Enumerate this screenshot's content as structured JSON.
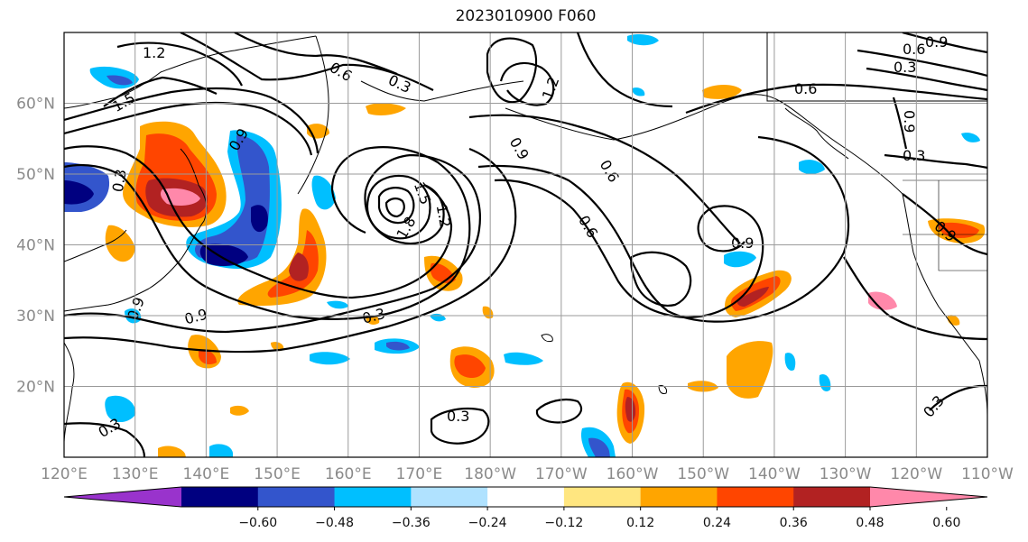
{
  "title": "2023010900 F060",
  "axes": {
    "lon_labels": [
      "120°E",
      "130°E",
      "140°E",
      "150°E",
      "160°E",
      "170°E",
      "180°W",
      "170°W",
      "160°W",
      "150°W",
      "140°W",
      "130°W",
      "120°W",
      "110°W"
    ],
    "lat_labels": [
      "60°N",
      "50°N",
      "40°N",
      "30°N",
      "20°N"
    ],
    "lon_range_deg_east": [
      120,
      250
    ],
    "lat_range_deg_north": [
      10,
      70
    ],
    "grid": true
  },
  "colorbar": {
    "tick_labels": [
      "−0.60",
      "−0.48",
      "−0.36",
      "−0.24",
      "−0.12",
      "0.12",
      "0.24",
      "0.36",
      "0.48",
      "0.60"
    ],
    "colors": [
      "#9933cc",
      "#000080",
      "#3355cc",
      "#00bfff",
      "#b0e2ff",
      "#ffffff",
      "#ffe680",
      "#ffa500",
      "#ff4500",
      "#b22222",
      "#ff88aa"
    ],
    "extend": "both",
    "orientation": "horizontal"
  },
  "contour_labels": [
    "1.2",
    "1.5",
    "0.6",
    "0.3",
    "0.9",
    "1.2",
    "0.9",
    "0.6",
    "0.3",
    "0.9",
    "0.3",
    "1.5",
    "1.8",
    "1.2",
    "0.6",
    "0.9",
    "0.6",
    "0.3",
    "0.3",
    "0.3",
    "0.9",
    "0.3",
    "0.6",
    "0.3",
    "0.9",
    "0.9",
    "0.9"
  ]
}
